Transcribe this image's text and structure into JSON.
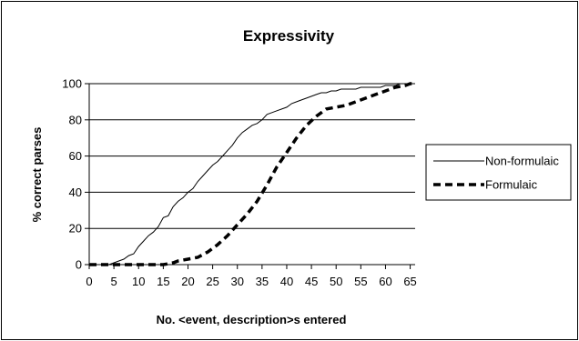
{
  "chart_data": {
    "type": "line",
    "title": "Expressivity",
    "xlabel": "No. <event, description>s entered",
    "ylabel": "% correct parses",
    "xlim": [
      0,
      66
    ],
    "ylim": [
      0,
      100
    ],
    "x_ticks": [
      "0",
      "5",
      "10",
      "15",
      "20",
      "25",
      "30",
      "35",
      "40",
      "45",
      "50",
      "55",
      "60",
      "65"
    ],
    "y_ticks": [
      "0",
      "20",
      "40",
      "60",
      "80",
      "100"
    ],
    "grid": "horizontal",
    "legend_position": "right",
    "series": [
      {
        "name": "Non-formulaic",
        "style": "solid",
        "color": "#000000",
        "x": [
          0,
          3,
          4,
          5,
          6,
          7,
          8,
          9,
          10,
          11,
          12,
          13,
          14,
          15,
          16,
          17,
          18,
          19,
          20,
          21,
          22,
          23,
          24,
          25,
          26,
          27,
          28,
          29,
          30,
          31,
          32,
          33,
          34,
          35,
          36,
          37,
          38,
          39,
          40,
          41,
          42,
          43,
          44,
          45,
          46,
          47,
          48,
          49,
          50,
          51,
          52,
          53,
          54,
          55,
          56,
          57,
          58,
          59,
          60,
          61,
          62,
          63,
          64,
          65,
          66
        ],
        "y": [
          0,
          0,
          0,
          1,
          2,
          3,
          5,
          6,
          10,
          13,
          16,
          18,
          21,
          26,
          27,
          32,
          35,
          37,
          40,
          42,
          46,
          49,
          52,
          55,
          57,
          60,
          63,
          66,
          70,
          73,
          75,
          77,
          78,
          80,
          83,
          84,
          85,
          86,
          87,
          89,
          90,
          91,
          92,
          93,
          94,
          95,
          95,
          96,
          96,
          97,
          97,
          97,
          97,
          98,
          98,
          98,
          98,
          98,
          99,
          99,
          99,
          100,
          100,
          100,
          100
        ]
      },
      {
        "name": "Formulaic",
        "style": "dashed",
        "color": "#000000",
        "x": [
          0,
          5,
          10,
          15,
          17,
          18,
          20,
          22,
          24,
          26,
          28,
          30,
          32,
          34,
          36,
          38,
          40,
          42,
          44,
          46,
          48,
          50,
          52,
          54,
          56,
          58,
          60,
          62,
          64,
          65,
          66
        ],
        "y": [
          0,
          0,
          0,
          0,
          1,
          2,
          3,
          4,
          7,
          11,
          16,
          22,
          28,
          35,
          44,
          54,
          62,
          70,
          77,
          82,
          86,
          87,
          88,
          90,
          92,
          94,
          96,
          98,
          99,
          100,
          100
        ]
      }
    ]
  }
}
